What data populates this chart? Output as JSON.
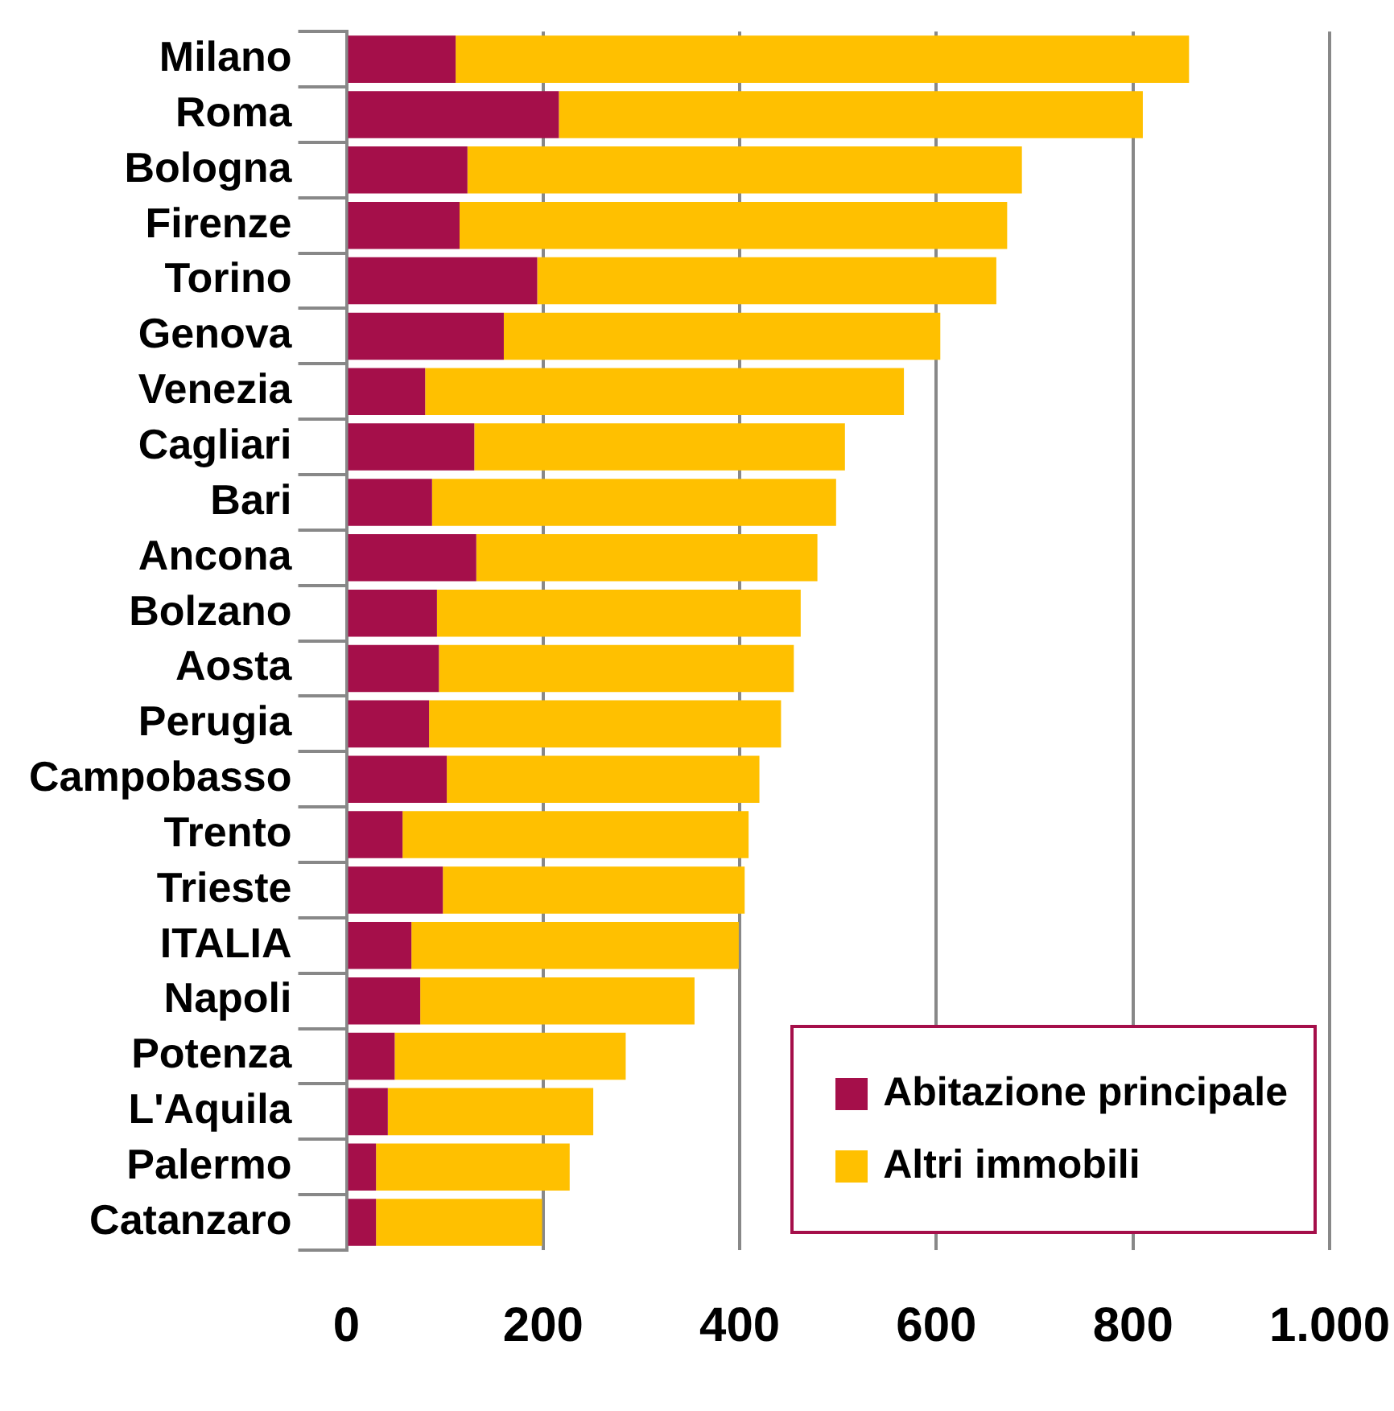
{
  "chart_data": {
    "type": "bar",
    "orientation": "horizontal",
    "stacked": true,
    "categories": [
      "Milano",
      "Roma",
      "Bologna",
      "Firenze",
      "Torino",
      "Genova",
      "Venezia",
      "Cagliari",
      "Bari",
      "Ancona",
      "Bolzano",
      "Aosta",
      "Perugia",
      "Campobasso",
      "Trento",
      "Trieste",
      "ITALIA",
      "Napoli",
      "Potenza",
      "L'Aquila",
      "Palermo",
      "Catanzaro"
    ],
    "series": [
      {
        "name": "Abitazione principale",
        "color": "#a50f4a",
        "values": [
          111,
          216,
          123,
          115,
          194,
          160,
          80,
          130,
          87,
          132,
          92,
          94,
          84,
          102,
          57,
          98,
          66,
          75,
          49,
          42,
          30,
          30
        ]
      },
      {
        "name": "Altri immobili",
        "color": "#ffc000",
        "values": [
          746,
          594,
          564,
          557,
          467,
          444,
          487,
          377,
          411,
          347,
          370,
          361,
          358,
          318,
          352,
          307,
          333,
          279,
          235,
          209,
          197,
          169
        ]
      }
    ],
    "xlim": [
      0,
      1000
    ],
    "xticks": [
      0,
      200,
      400,
      600,
      {
        "value": 1000,
        "label": "1.000"
      },
      800
    ],
    "grid": "x",
    "legend": "bottom right"
  }
}
